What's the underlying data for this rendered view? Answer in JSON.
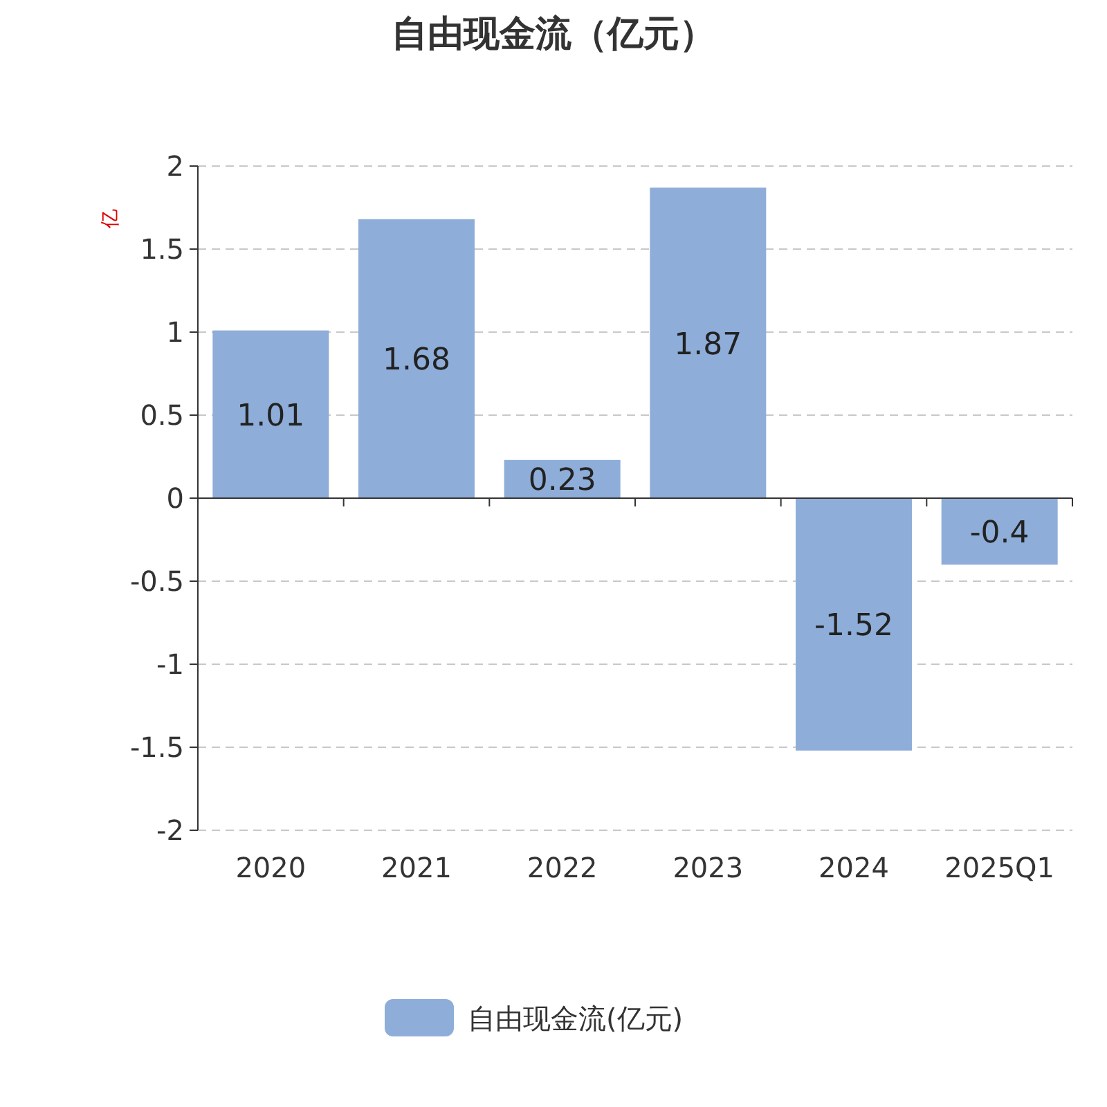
{
  "chart_data": {
    "type": "bar",
    "title": "自由现金流（亿元）",
    "ylabel": "亿",
    "categories": [
      "2020",
      "2021",
      "2022",
      "2023",
      "2024",
      "2025Q1"
    ],
    "series": [
      {
        "name": "自由现金流(亿元)",
        "color": "#8eadd9",
        "values": [
          1.01,
          1.68,
          0.23,
          1.87,
          -1.52,
          -0.4
        ]
      }
    ],
    "ylim": [
      -2,
      2
    ],
    "yticks": [
      -2,
      -1.5,
      -1,
      -0.5,
      0,
      0.5,
      1,
      1.5,
      2
    ],
    "grid": "y",
    "legend": "bottom",
    "data_labels": true
  }
}
